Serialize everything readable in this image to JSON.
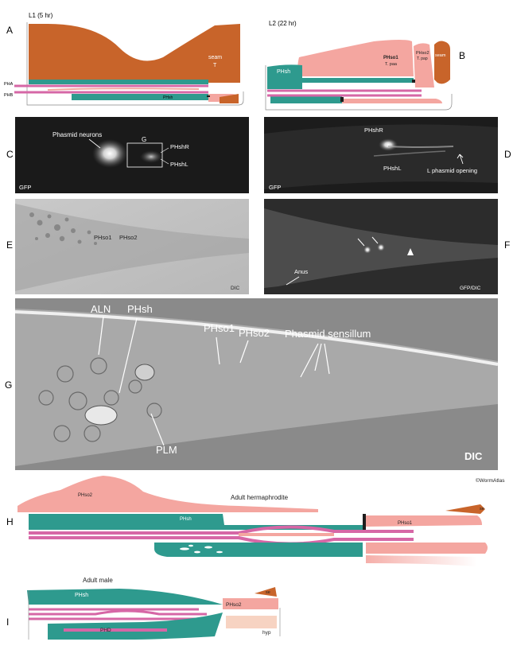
{
  "panels": {
    "A": {
      "letter": "A",
      "stage": "L1 (5 hr)",
      "labels": {
        "seam": "seam",
        "T": "T",
        "PHA": "PHA",
        "PHB": "PHB",
        "PHsh": "PHsh"
      }
    },
    "B": {
      "letter": "B",
      "stage": "L2 (22 hr)",
      "labels": {
        "PHsh": "PHsh",
        "PHso1": "PHso1",
        "Tpaa": "T. paa",
        "PHso2": "PHso2",
        "Tpap": "T. pap",
        "seam": "seam"
      }
    },
    "C": {
      "letter": "C",
      "labels": {
        "neurons": "Phasmid neurons",
        "G": "G",
        "PHshR": "PHshR",
        "PHshL": "PHshL",
        "mode": "GFP"
      }
    },
    "D": {
      "letter": "D",
      "labels": {
        "PHshR": "PHshR",
        "PHshL": "PHshL",
        "opening": "L phasmid opening",
        "mode": "GFP"
      }
    },
    "E": {
      "letter": "E",
      "labels": {
        "PHso1": "PHso1",
        "PHso2": "PHso2",
        "mode": "DIC"
      }
    },
    "F": {
      "letter": "F",
      "labels": {
        "anus": "Anus",
        "mode": "GFP/DIC"
      }
    },
    "G": {
      "letter": "G",
      "labels": {
        "ALN": "ALN",
        "PHsh": "PHsh",
        "PHso1": "PHso1",
        "PHso2": "PHso2",
        "sensillum": "Phasmid sensillum",
        "PLM": "PLM",
        "mode": "DIC"
      }
    },
    "H": {
      "letter": "H",
      "title": "Adult hermaphrodite",
      "credit": "©WormAtlas",
      "labels": {
        "PHso2": "PHso2",
        "PHsh": "PHsh",
        "PHso1": "PHso1",
        "se": "se"
      }
    },
    "I": {
      "letter": "I",
      "title": "Adult male",
      "labels": {
        "PHsh": "PHsh",
        "PHso2": "PHso2",
        "se": "se",
        "PHD": "PHD",
        "hyp": "hyp"
      }
    }
  },
  "colors": {
    "seam": "#c8642a",
    "sheath": "#2e9a8e",
    "socket": "#f4a6a0",
    "neuron": "#d667a6",
    "dark": "#1e1e1e"
  }
}
